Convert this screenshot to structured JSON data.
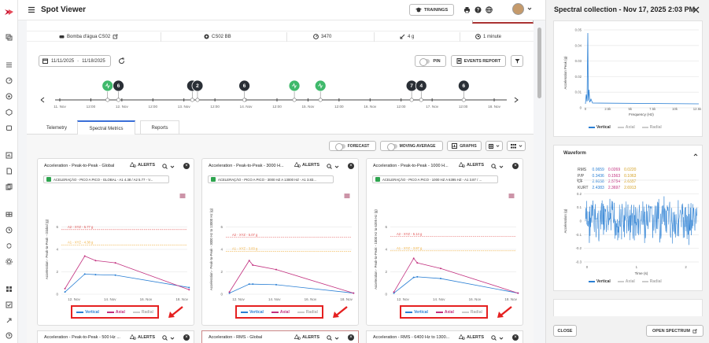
{
  "app": {
    "title": "Spot Viewer",
    "trainings_label": "TRAININGS"
  },
  "meta": {
    "asset": "Bomba d'água CS02",
    "sensor": "CS02 BB",
    "rpm": "3470",
    "range": "4 g",
    "interval": "1 minute"
  },
  "toolbar": {
    "date_from": "11/11/2025",
    "date_to": "11/18/2025",
    "pin_label": "PIN",
    "events_label": "EVENTS REPORT"
  },
  "timeline": {
    "ticks": [
      "11. Nov",
      "12:00",
      "12. Nov",
      "12:00",
      "13. Nov",
      "12:00",
      "14. Nov",
      "12:00",
      "15. Nov",
      "12:00",
      "16. Nov",
      "12:00",
      "17. Nov",
      "12:00",
      "18. Nov"
    ],
    "markers": [
      {
        "label": "",
        "kind": "green",
        "x": 0.11
      },
      {
        "label": "6",
        "kind": "dark",
        "x": 0.135
      },
      {
        "label": "",
        "kind": "dark",
        "x": 0.305
      },
      {
        "label": "2",
        "kind": "dark",
        "x": 0.317
      },
      {
        "label": "6",
        "kind": "dark",
        "x": 0.425
      },
      {
        "label": "",
        "kind": "green",
        "x": 0.54
      },
      {
        "label": "",
        "kind": "green",
        "x": 0.6
      },
      {
        "label": "7",
        "kind": "dark",
        "x": 0.81
      },
      {
        "label": "4",
        "kind": "dark",
        "x": 0.832
      },
      {
        "label": "6",
        "kind": "dark",
        "x": 0.93
      }
    ]
  },
  "tabs": [
    "Telemetry",
    "Spectral Metrics",
    "Reports"
  ],
  "controls": {
    "forecast": "FORECAST",
    "moving_average": "MOVING AVERAGE",
    "graphs": "GRAPHS"
  },
  "legend": {
    "vertical": "Vertical",
    "axial": "Axial",
    "radial": "Radial"
  },
  "colors": {
    "vertical": "#2a7fd4",
    "axial": "#c2307f",
    "radial": "#aaaaaa",
    "alert_a2": "#e05050",
    "alert_a1": "#f0b040",
    "accent": "#3a6fd8"
  },
  "cards": [
    {
      "title": "Acceleration - Peak-to-Peak - Global",
      "alerts": "ALERTS",
      "chip": "ACELERAÇÃO - PICO A PICO - GLOBAL - A1 4.38 / A2 5.77 - V...",
      "ylabel": "Acceleration - Peak-to-Peak - Global (g)",
      "yticks": [
        "0",
        "2",
        "4",
        "6"
      ],
      "xticks": [
        "12. Nov",
        "14. Nov",
        "16. Nov",
        "18. Nov"
      ],
      "a2_label": "A2 - XYZ - 5.77 g",
      "a1_label": "A1 - XYZ - 4.38 g",
      "chart_data": {
        "type": "line",
        "ylim": [
          0,
          8
        ],
        "a2": 5.77,
        "a1": 4.38,
        "x": [
          0,
          1.1,
          1.7,
          2.8,
          6.9
        ],
        "series": [
          {
            "name": "Vertical",
            "values": [
              0.2,
              1.8,
              1.75,
              1.7,
              0.6
            ]
          },
          {
            "name": "Axial",
            "values": [
              0.5,
              3.4,
              3.0,
              2.8,
              0.4
            ]
          }
        ]
      }
    },
    {
      "title": "Acceleration - Peak-to-Peak - 3000 H...",
      "alerts": "ALERTS",
      "chip": "ACELERAÇÃO - PICO A PICO - 3000 HZ A 13000 HZ - A1 3.83...",
      "ylabel": "Acceleration - Peak-to-Peak - 3000 Hz to 13000 Hz (g)",
      "yticks": [
        "0",
        "2",
        "4",
        "6"
      ],
      "xticks": [
        "12. Nov",
        "14. Nov",
        "16. Nov",
        "18. Nov"
      ],
      "a2_label": "A2 - XYZ - 5.07 g",
      "a1_label": "A1 - XYZ - 3.83 g",
      "chart_data": {
        "type": "line",
        "ylim": [
          0,
          8
        ],
        "a2": 5.07,
        "a1": 3.83,
        "x": [
          0,
          1.1,
          1.3,
          2.6,
          6.9
        ],
        "series": [
          {
            "name": "Vertical",
            "values": [
              0.1,
              0.9,
              0.9,
              0.85,
              0.1
            ]
          },
          {
            "name": "Axial",
            "values": [
              0.2,
              3.0,
              2.6,
              2.2,
              0.1
            ]
          }
        ]
      }
    },
    {
      "title": "Acceleration - Peak-to-Peak - 1000 H...",
      "alerts": "ALERTS",
      "chip": "ACELERAÇÃO - PICO A PICO - 1000 HZ A 6395 HZ - A1 3.87 / ...",
      "ylabel": "Acceleration - Peak-to-Peak - 1000 Hz to 6395 Hz (g)",
      "yticks": [
        "0",
        "2",
        "4",
        "6"
      ],
      "xticks": [
        "12. Nov",
        "14. Nov",
        "16. Nov",
        "18. Nov"
      ],
      "a2_label": "A2 - XYZ - 5.14 g",
      "a1_label": "A1 - XYZ - 3.87 g",
      "chart_data": {
        "type": "line",
        "ylim": [
          0,
          8
        ],
        "a2": 5.14,
        "a1": 3.87,
        "x": [
          0,
          1.1,
          1.3,
          2.6,
          6.9
        ],
        "series": [
          {
            "name": "Vertical",
            "values": [
              0.1,
              1.5,
              1.55,
              1.4,
              0.1
            ]
          },
          {
            "name": "Axial",
            "values": [
              0.2,
              3.2,
              2.8,
              2.3,
              0.1
            ]
          }
        ]
      }
    }
  ],
  "bottom_cards": [
    {
      "title": "Acceleration - Peak-to-Peak - 500 Hz ...",
      "alerts": "ALERTS"
    },
    {
      "title": "Acceleration - RMS - Global",
      "alerts": "ALERTS"
    },
    {
      "title": "Acceleration - RMS - 6400 Hz to 1300...",
      "alerts": "ALERTS"
    }
  ],
  "side": {
    "title": "Spectral collection - Nov 17, 2025 2:03 PM",
    "spectrum": {
      "ylabel": "Acceleration Peak (g)",
      "xlabel": "Frequency (Hz)",
      "yticks": [
        "0.05",
        "0.04",
        "0.03",
        "0.02",
        "0.01",
        "0"
      ],
      "xticks": [
        "0",
        "2.5k",
        "5k",
        "7.5k",
        "10k",
        "12.5k"
      ]
    },
    "waveform": {
      "title": "Waveform",
      "ylabel": "Acceleration (g)",
      "xlabel": "Time (s)",
      "yticks": [
        "0.3",
        "0.2",
        "0.1",
        "0",
        "-0.1",
        "-0.2",
        "-0.3"
      ],
      "xticks": [
        "0",
        "1",
        "2"
      ],
      "stats": [
        {
          "label": "RMS",
          "v": "0.0659",
          "a": "0.0269",
          "r": "0.0220"
        },
        {
          "label": "P/P",
          "v": "0.3436",
          "a": "0.1563",
          "r": "0.1063"
        },
        {
          "label": "CF",
          "v": "2.6038",
          "a": "2.5754",
          "r": "2.6357"
        },
        {
          "label": "KURT",
          "v": "2.4383",
          "a": "2.3697",
          "r": "2.6913"
        }
      ]
    },
    "close_label": "CLOSE",
    "open_spectrum_label": "OPEN SPECTRUM"
  }
}
